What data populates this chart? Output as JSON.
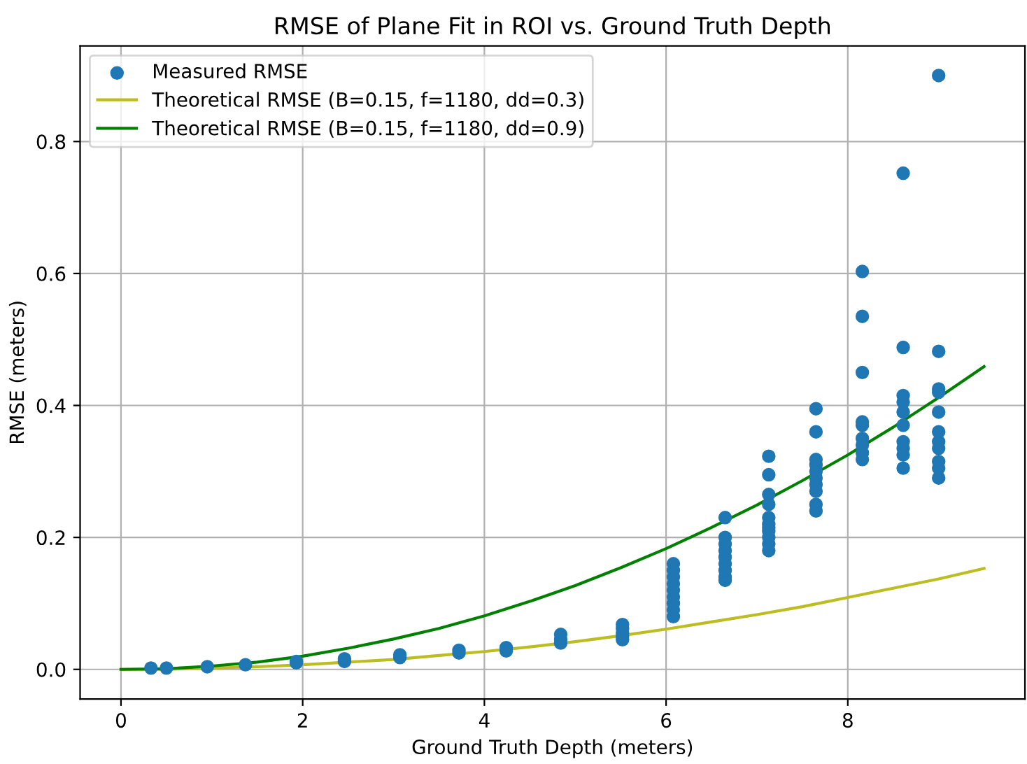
{
  "chart_data": {
    "type": "scatter",
    "title": "RMSE of Plane Fit in ROI vs. Ground Truth Depth",
    "xlabel": "Ground Truth Depth (meters)",
    "ylabel": "RMSE (meters)",
    "xlim": [
      -0.45,
      9.95
    ],
    "ylim": [
      -0.045,
      0.945
    ],
    "xticks": [
      0,
      2,
      4,
      6,
      8
    ],
    "yticks": [
      {
        "value": 0,
        "label": "0.0"
      },
      0.2,
      0.4,
      0.6,
      0.8
    ],
    "grid": true,
    "legend": "top left",
    "series": [
      {
        "name": "Measured RMSE",
        "marker": "circle",
        "color": "#1f77b4",
        "x": [
          0.33,
          0.5,
          0.95,
          1.37,
          1.93,
          1.93,
          2.46,
          2.46,
          3.07,
          3.07,
          3.72,
          3.72,
          4.24,
          4.24,
          4.84,
          4.84,
          4.84,
          5.52,
          5.52,
          5.52,
          5.52,
          5.52,
          6.08,
          6.08,
          6.08,
          6.08,
          6.08,
          6.08,
          6.08,
          6.08,
          6.08,
          6.65,
          6.65,
          6.65,
          6.65,
          6.65,
          6.65,
          6.65,
          6.65,
          6.65,
          7.13,
          7.13,
          7.13,
          7.13,
          7.13,
          7.13,
          7.13,
          7.13,
          7.13,
          7.13,
          7.13,
          7.65,
          7.65,
          7.65,
          7.65,
          7.65,
          7.65,
          7.65,
          7.65,
          7.65,
          7.65,
          8.16,
          8.16,
          8.16,
          8.16,
          8.16,
          8.16,
          8.16,
          8.16,
          8.16,
          8.61,
          8.61,
          8.61,
          8.61,
          8.61,
          8.61,
          8.61,
          8.61,
          8.61,
          8.61,
          9.0,
          9.0,
          9.0,
          9.0,
          9.0,
          9.0,
          9.0,
          9.0,
          9.0,
          9.0,
          9.0
        ],
        "values": [
          0.002,
          0.002,
          0.004,
          0.007,
          0.01,
          0.012,
          0.012,
          0.016,
          0.018,
          0.022,
          0.025,
          0.029,
          0.028,
          0.033,
          0.04,
          0.045,
          0.053,
          0.045,
          0.05,
          0.055,
          0.062,
          0.068,
          0.08,
          0.09,
          0.1,
          0.11,
          0.12,
          0.13,
          0.14,
          0.15,
          0.16,
          0.135,
          0.14,
          0.15,
          0.16,
          0.17,
          0.18,
          0.19,
          0.2,
          0.23,
          0.18,
          0.19,
          0.2,
          0.21,
          0.215,
          0.22,
          0.23,
          0.25,
          0.265,
          0.295,
          0.323,
          0.24,
          0.25,
          0.27,
          0.28,
          0.29,
          0.3,
          0.31,
          0.318,
          0.36,
          0.395,
          0.318,
          0.328,
          0.34,
          0.35,
          0.37,
          0.375,
          0.45,
          0.535,
          0.603,
          0.305,
          0.325,
          0.335,
          0.345,
          0.37,
          0.39,
          0.405,
          0.415,
          0.488,
          0.752,
          0.29,
          0.305,
          0.315,
          0.335,
          0.345,
          0.36,
          0.39,
          0.42,
          0.425,
          0.482,
          0.9
        ]
      },
      {
        "name": "Theoretical RMSE (B=0.15, f=1180, dd=0.3)",
        "type": "line",
        "marker": "none",
        "line_style": "solid",
        "color": "#bcbd22",
        "x": [
          0,
          0.5,
          1,
          1.5,
          2,
          2.5,
          3,
          3.5,
          4,
          4.5,
          5,
          5.5,
          6,
          6.5,
          7,
          7.5,
          8,
          8.5,
          9,
          9.5
        ],
        "values": [
          0,
          0.0,
          0.002,
          0.004,
          0.007,
          0.011,
          0.015,
          0.021,
          0.027,
          0.034,
          0.042,
          0.051,
          0.061,
          0.072,
          0.083,
          0.095,
          0.109,
          0.123,
          0.137,
          0.153
        ]
      },
      {
        "name": "Theoretical RMSE (B=0.15, f=1180, dd=0.9)",
        "type": "line",
        "marker": "none",
        "line_style": "solid",
        "color": "#008000",
        "x": [
          0,
          0.5,
          1,
          1.5,
          2,
          2.5,
          3,
          3.5,
          4,
          4.5,
          5,
          5.5,
          6,
          6.5,
          7,
          7.5,
          8,
          8.5,
          9,
          9.5
        ],
        "values": [
          0,
          0.001,
          0.005,
          0.011,
          0.02,
          0.032,
          0.046,
          0.062,
          0.081,
          0.103,
          0.127,
          0.154,
          0.183,
          0.215,
          0.249,
          0.286,
          0.325,
          0.367,
          0.412,
          0.459
        ]
      }
    ]
  }
}
